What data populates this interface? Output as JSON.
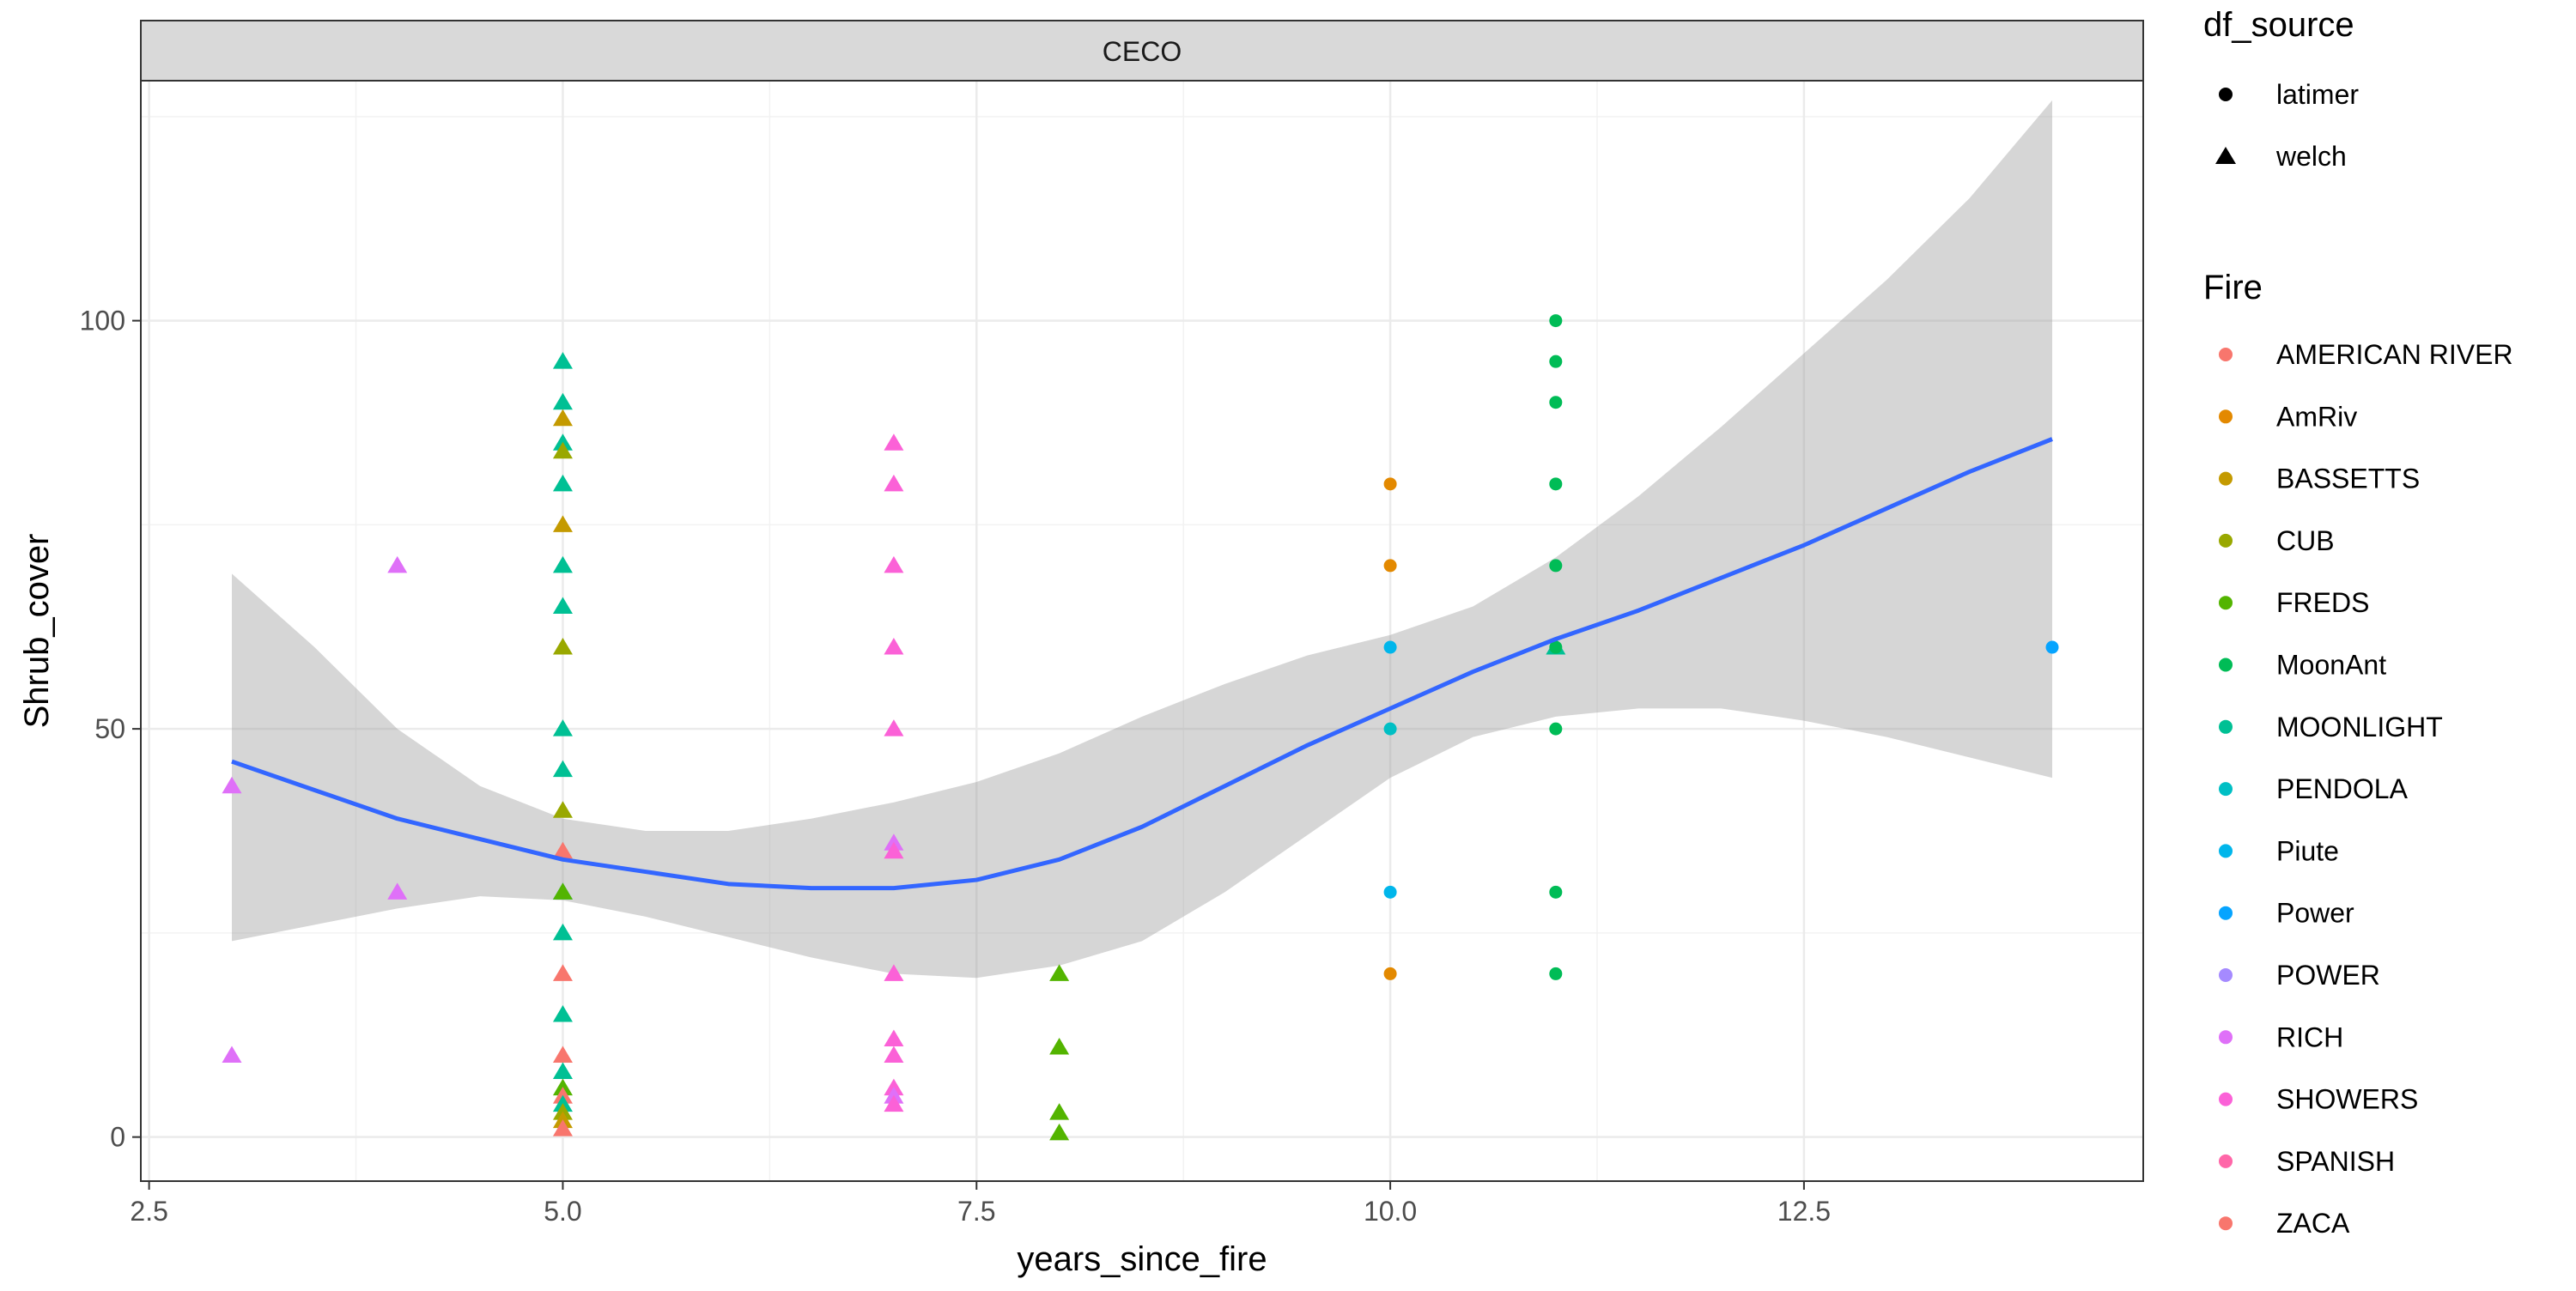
{
  "chart_data": {
    "type": "scatter",
    "facet_label": "CECO",
    "xlabel": "years_since_fire",
    "ylabel": "Shrub_cover",
    "xlim": [
      2.45,
      14.55
    ],
    "ylim": [
      -5.4,
      129.4
    ],
    "x_ticks": [
      2.5,
      5.0,
      7.5,
      10.0,
      12.5
    ],
    "x_tick_labels": [
      "2.5",
      "5.0",
      "7.5",
      "10.0",
      "12.5"
    ],
    "y_ticks": [
      0,
      50,
      100
    ],
    "y_tick_labels": [
      "0",
      "50",
      "100"
    ],
    "grid": true,
    "legend_position": "right",
    "shape_legend": {
      "title": "df_source",
      "items": [
        {
          "label": "latimer",
          "shape": "circle"
        },
        {
          "label": "welch",
          "shape": "triangle"
        }
      ]
    },
    "color_legend": {
      "title": "Fire",
      "items": [
        {
          "label": "AMERICAN RIVER",
          "color": "#F8766D"
        },
        {
          "label": "AmRiv",
          "color": "#E38900"
        },
        {
          "label": "BASSETTS",
          "color": "#C49A00"
        },
        {
          "label": "CUB",
          "color": "#99A800"
        },
        {
          "label": "FREDS",
          "color": "#53B400"
        },
        {
          "label": "MoonAnt",
          "color": "#00BC56"
        },
        {
          "label": "MOONLIGHT",
          "color": "#00C094"
        },
        {
          "label": "PENDOLA",
          "color": "#00BFC4"
        },
        {
          "label": "Piute",
          "color": "#00B6EB"
        },
        {
          "label": "Power",
          "color": "#06A4FF"
        },
        {
          "label": "POWER",
          "color": "#A58AFF"
        },
        {
          "label": "RICH",
          "color": "#DF70F8"
        },
        {
          "label": "SHOWERS",
          "color": "#FB61D7"
        },
        {
          "label": "SPANISH",
          "color": "#FF66A8"
        },
        {
          "label": "ZACA",
          "color": "#F8766D"
        }
      ]
    },
    "points": [
      {
        "x": 3,
        "y": 43,
        "fire": "RICH",
        "source": "welch"
      },
      {
        "x": 3,
        "y": 10,
        "fire": "RICH",
        "source": "welch"
      },
      {
        "x": 4,
        "y": 70,
        "fire": "RICH",
        "source": "welch"
      },
      {
        "x": 4,
        "y": 30,
        "fire": "RICH",
        "source": "welch"
      },
      {
        "x": 5,
        "y": 95,
        "fire": "MOONLIGHT",
        "source": "welch"
      },
      {
        "x": 5,
        "y": 90,
        "fire": "MOONLIGHT",
        "source": "welch"
      },
      {
        "x": 5,
        "y": 88,
        "fire": "BASSETTS",
        "source": "welch"
      },
      {
        "x": 5,
        "y": 85,
        "fire": "MOONLIGHT",
        "source": "welch"
      },
      {
        "x": 5,
        "y": 84,
        "fire": "CUB",
        "source": "welch"
      },
      {
        "x": 5,
        "y": 80,
        "fire": "MOONLIGHT",
        "source": "welch"
      },
      {
        "x": 5,
        "y": 75,
        "fire": "BASSETTS",
        "source": "welch"
      },
      {
        "x": 5,
        "y": 70,
        "fire": "MOONLIGHT",
        "source": "welch"
      },
      {
        "x": 5,
        "y": 65,
        "fire": "MOONLIGHT",
        "source": "welch"
      },
      {
        "x": 5,
        "y": 60,
        "fire": "CUB",
        "source": "welch"
      },
      {
        "x": 5,
        "y": 50,
        "fire": "MOONLIGHT",
        "source": "welch"
      },
      {
        "x": 5,
        "y": 45,
        "fire": "MOONLIGHT",
        "source": "welch"
      },
      {
        "x": 5,
        "y": 40,
        "fire": "CUB",
        "source": "welch"
      },
      {
        "x": 5,
        "y": 35,
        "fire": "AMERICAN RIVER",
        "source": "welch"
      },
      {
        "x": 5,
        "y": 30,
        "fire": "PENDOLA",
        "source": "welch"
      },
      {
        "x": 5,
        "y": 30,
        "fire": "FREDS",
        "source": "welch"
      },
      {
        "x": 5,
        "y": 25,
        "fire": "MOONLIGHT",
        "source": "welch"
      },
      {
        "x": 5,
        "y": 20,
        "fire": "AMERICAN RIVER",
        "source": "welch"
      },
      {
        "x": 5,
        "y": 15,
        "fire": "MOONLIGHT",
        "source": "welch"
      },
      {
        "x": 5,
        "y": 10,
        "fire": "ZACA",
        "source": "welch"
      },
      {
        "x": 5,
        "y": 8,
        "fire": "MOONLIGHT",
        "source": "welch"
      },
      {
        "x": 5,
        "y": 6,
        "fire": "FREDS",
        "source": "welch"
      },
      {
        "x": 5,
        "y": 5,
        "fire": "AMERICAN RIVER",
        "source": "welch"
      },
      {
        "x": 5,
        "y": 4,
        "fire": "MOONLIGHT",
        "source": "welch"
      },
      {
        "x": 5,
        "y": 3,
        "fire": "CUB",
        "source": "welch"
      },
      {
        "x": 5,
        "y": 2,
        "fire": "BASSETTS",
        "source": "welch"
      },
      {
        "x": 5,
        "y": 1,
        "fire": "ZACA",
        "source": "welch"
      },
      {
        "x": 7,
        "y": 85,
        "fire": "SHOWERS",
        "source": "welch"
      },
      {
        "x": 7,
        "y": 80,
        "fire": "SHOWERS",
        "source": "welch"
      },
      {
        "x": 7,
        "y": 70,
        "fire": "SHOWERS",
        "source": "welch"
      },
      {
        "x": 7,
        "y": 60,
        "fire": "SHOWERS",
        "source": "welch"
      },
      {
        "x": 7,
        "y": 50,
        "fire": "SHOWERS",
        "source": "welch"
      },
      {
        "x": 7,
        "y": 36,
        "fire": "RICH",
        "source": "welch"
      },
      {
        "x": 7,
        "y": 35,
        "fire": "SHOWERS",
        "source": "welch"
      },
      {
        "x": 7,
        "y": 20,
        "fire": "SHOWERS",
        "source": "welch"
      },
      {
        "x": 7,
        "y": 12,
        "fire": "SHOWERS",
        "source": "welch"
      },
      {
        "x": 7,
        "y": 10,
        "fire": "SHOWERS",
        "source": "welch"
      },
      {
        "x": 7,
        "y": 6,
        "fire": "SHOWERS",
        "source": "welch"
      },
      {
        "x": 7,
        "y": 5,
        "fire": "RICH",
        "source": "welch"
      },
      {
        "x": 7,
        "y": 4,
        "fire": "SHOWERS",
        "source": "welch"
      },
      {
        "x": 8,
        "y": 20,
        "fire": "FREDS",
        "source": "welch"
      },
      {
        "x": 8,
        "y": 11,
        "fire": "FREDS",
        "source": "welch"
      },
      {
        "x": 8,
        "y": 3,
        "fire": "FREDS",
        "source": "welch"
      },
      {
        "x": 8,
        "y": 0.5,
        "fire": "FREDS",
        "source": "welch"
      },
      {
        "x": 10,
        "y": 80,
        "fire": "AmRiv",
        "source": "latimer"
      },
      {
        "x": 10,
        "y": 70,
        "fire": "AmRiv",
        "source": "latimer"
      },
      {
        "x": 10,
        "y": 60,
        "fire": "Piute",
        "source": "latimer"
      },
      {
        "x": 10,
        "y": 50,
        "fire": "PENDOLA",
        "source": "latimer"
      },
      {
        "x": 10,
        "y": 30,
        "fire": "Piute",
        "source": "latimer"
      },
      {
        "x": 10,
        "y": 20,
        "fire": "AmRiv",
        "source": "latimer"
      },
      {
        "x": 11,
        "y": 100,
        "fire": "MoonAnt",
        "source": "latimer"
      },
      {
        "x": 11,
        "y": 95,
        "fire": "MoonAnt",
        "source": "latimer"
      },
      {
        "x": 11,
        "y": 90,
        "fire": "MoonAnt",
        "source": "latimer"
      },
      {
        "x": 11,
        "y": 80,
        "fire": "MoonAnt",
        "source": "latimer"
      },
      {
        "x": 11,
        "y": 70,
        "fire": "MoonAnt",
        "source": "latimer"
      },
      {
        "x": 11,
        "y": 60,
        "fire": "MOONLIGHT",
        "source": "welch"
      },
      {
        "x": 11,
        "y": 60,
        "fire": "MoonAnt",
        "source": "latimer"
      },
      {
        "x": 11,
        "y": 50,
        "fire": "MoonAnt",
        "source": "latimer"
      },
      {
        "x": 11,
        "y": 30,
        "fire": "MoonAnt",
        "source": "latimer"
      },
      {
        "x": 11,
        "y": 20,
        "fire": "MoonAnt",
        "source": "latimer"
      },
      {
        "x": 14,
        "y": 60,
        "fire": "Power",
        "source": "latimer"
      }
    ],
    "smooth": {
      "color": "#3366FF",
      "ribbon_color": "#999999",
      "points": [
        {
          "x": 3.0,
          "y": 46.0,
          "lo": 24.0,
          "hi": 69.0
        },
        {
          "x": 3.5,
          "y": 42.5,
          "lo": 26.0,
          "hi": 60.0
        },
        {
          "x": 4.0,
          "y": 39.0,
          "lo": 28.0,
          "hi": 50.0
        },
        {
          "x": 4.5,
          "y": 36.5,
          "lo": 29.5,
          "hi": 43.0
        },
        {
          "x": 5.0,
          "y": 34.0,
          "lo": 29.0,
          "hi": 39.0
        },
        {
          "x": 5.5,
          "y": 32.5,
          "lo": 27.0,
          "hi": 37.5
        },
        {
          "x": 6.0,
          "y": 31.0,
          "lo": 24.5,
          "hi": 37.5
        },
        {
          "x": 6.5,
          "y": 30.5,
          "lo": 22.0,
          "hi": 39.0
        },
        {
          "x": 7.0,
          "y": 30.5,
          "lo": 20.0,
          "hi": 41.0
        },
        {
          "x": 7.5,
          "y": 31.5,
          "lo": 19.5,
          "hi": 43.5
        },
        {
          "x": 8.0,
          "y": 34.0,
          "lo": 21.0,
          "hi": 47.0
        },
        {
          "x": 8.5,
          "y": 38.0,
          "lo": 24.0,
          "hi": 51.5
        },
        {
          "x": 9.0,
          "y": 43.0,
          "lo": 30.0,
          "hi": 55.5
        },
        {
          "x": 9.5,
          "y": 48.0,
          "lo": 37.0,
          "hi": 59.0
        },
        {
          "x": 10.0,
          "y": 52.5,
          "lo": 44.0,
          "hi": 61.5
        },
        {
          "x": 10.5,
          "y": 57.0,
          "lo": 49.0,
          "hi": 65.0
        },
        {
          "x": 11.0,
          "y": 61.0,
          "lo": 51.5,
          "hi": 71.0
        },
        {
          "x": 11.5,
          "y": 64.5,
          "lo": 52.5,
          "hi": 78.5
        },
        {
          "x": 12.0,
          "y": 68.5,
          "lo": 52.5,
          "hi": 87.0
        },
        {
          "x": 12.5,
          "y": 72.5,
          "lo": 51.0,
          "hi": 96.0
        },
        {
          "x": 13.0,
          "y": 77.0,
          "lo": 49.0,
          "hi": 105.0
        },
        {
          "x": 13.5,
          "y": 81.5,
          "lo": 46.5,
          "hi": 115.0
        },
        {
          "x": 14.0,
          "y": 85.5,
          "lo": 44.0,
          "hi": 127.0
        }
      ]
    }
  }
}
